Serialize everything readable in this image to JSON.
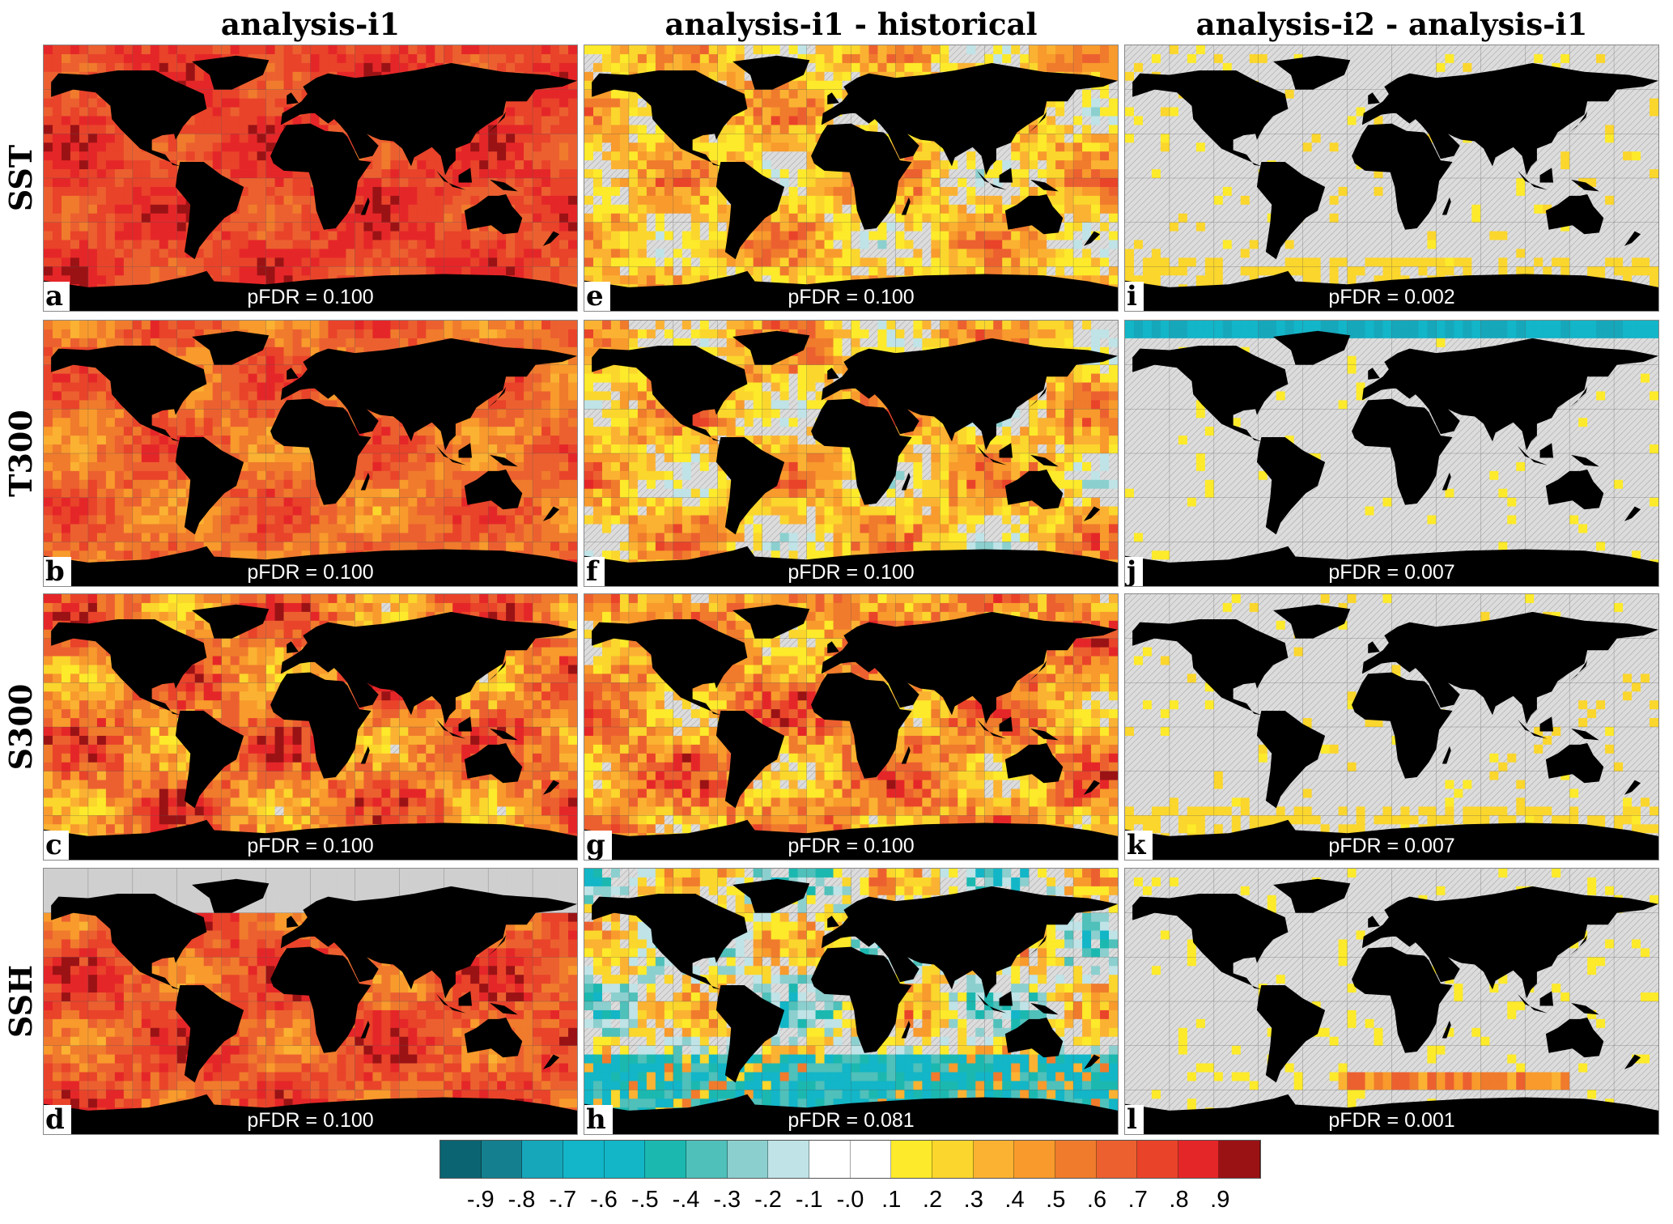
{
  "chart_data": {
    "type": "heatmap",
    "columns": [
      "analysis-i1",
      "analysis-i1 - historical",
      "analysis-i2 - analysis-i1"
    ],
    "rows": [
      "SST",
      "T300",
      "S300",
      "SSH"
    ],
    "panels": [
      {
        "label": "a",
        "row": "SST",
        "column": "analysis-i1",
        "pfdr": "pFDR = 0.100"
      },
      {
        "label": "e",
        "row": "SST",
        "column": "analysis-i1 - historical",
        "pfdr": "pFDR = 0.100"
      },
      {
        "label": "i",
        "row": "SST",
        "column": "analysis-i2 - analysis-i1",
        "pfdr": "pFDR = 0.002"
      },
      {
        "label": "b",
        "row": "T300",
        "column": "analysis-i1",
        "pfdr": "pFDR = 0.100"
      },
      {
        "label": "f",
        "row": "T300",
        "column": "analysis-i1 - historical",
        "pfdr": "pFDR = 0.100"
      },
      {
        "label": "j",
        "row": "T300",
        "column": "analysis-i2 - analysis-i1",
        "pfdr": "pFDR = 0.007"
      },
      {
        "label": "c",
        "row": "S300",
        "column": "analysis-i1",
        "pfdr": "pFDR = 0.100"
      },
      {
        "label": "g",
        "row": "S300",
        "column": "analysis-i1 - historical",
        "pfdr": "pFDR = 0.100"
      },
      {
        "label": "k",
        "row": "S300",
        "column": "analysis-i2 - analysis-i1",
        "pfdr": "pFDR = 0.007"
      },
      {
        "label": "d",
        "row": "SSH",
        "column": "analysis-i1",
        "pfdr": "pFDR = 0.100"
      },
      {
        "label": "h",
        "row": "SSH",
        "column": "analysis-i1 - historical",
        "pfdr": "pFDR = 0.081"
      },
      {
        "label": "l",
        "row": "SSH",
        "column": "analysis-i2 - analysis-i1",
        "pfdr": "pFDR = 0.001"
      }
    ],
    "colorbar": {
      "range": [
        -1,
        1
      ],
      "tick_labels": [
        "-.9",
        "-.8",
        "-.7",
        "-.6",
        "-.5",
        "-.4",
        "-.3",
        "-.2",
        "-.1",
        "-.0",
        ".1",
        ".2",
        ".3",
        ".4",
        ".5",
        ".6",
        ".7",
        ".8",
        ".9"
      ],
      "colors": [
        "#0b6472",
        "#14808f",
        "#16a7bb",
        "#13b5c8",
        "#12b6c6",
        "#1bb8b0",
        "#4fc0ba",
        "#8ccfcf",
        "#bfe3e6",
        "#ffffff",
        "#ffffff",
        "#fdea2a",
        "#fbd62c",
        "#fbb232",
        "#f89a2c",
        "#f07b2c",
        "#ec6030",
        "#e9432a",
        "#e52628",
        "#9b1215"
      ]
    },
    "land_color": "#000000",
    "insignificant_color": "#d9d9d9"
  }
}
